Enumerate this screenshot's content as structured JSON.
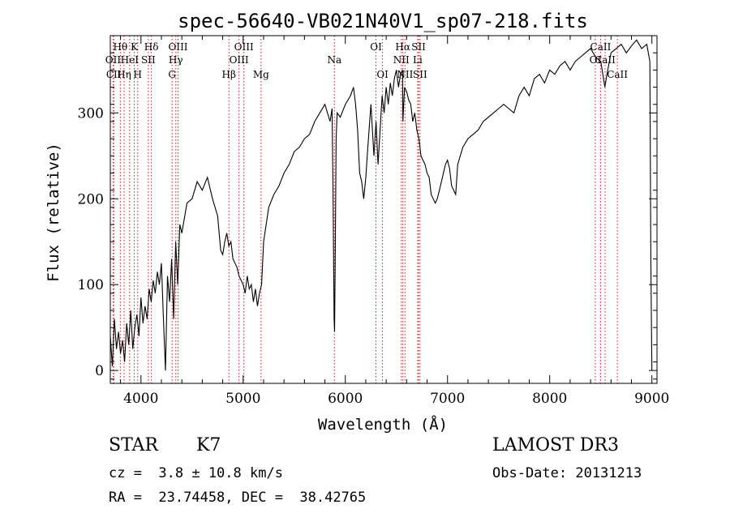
{
  "chart_data": {
    "type": "line",
    "title": "spec-56640-VB021N40V1_sp07-218.fits",
    "xlabel": "Wavelength (Å)",
    "ylabel": "Flux (relative)",
    "xlim": [
      3700,
      9050
    ],
    "ylim": [
      -15,
      390
    ],
    "xticks": [
      4000,
      5000,
      6000,
      7000,
      8000,
      9000
    ],
    "yticks": [
      0,
      100,
      200,
      300
    ],
    "grid": false,
    "line_color": "#000000",
    "marker_color": "#cc2222",
    "series": [
      {
        "x": [
          3700,
          3720,
          3740,
          3760,
          3780,
          3800,
          3820,
          3840,
          3860,
          3880,
          3900,
          3920,
          3940,
          3960,
          3980,
          4000,
          4020,
          4040,
          4060,
          4080,
          4100,
          4120,
          4140,
          4160,
          4180,
          4200,
          4220,
          4240,
          4260,
          4280,
          4300,
          4320,
          4340,
          4360,
          4380,
          4400,
          4450,
          4500,
          4550,
          4600,
          4650,
          4700,
          4750,
          4780,
          4800,
          4820,
          4840,
          4860,
          4880,
          4900,
          4920,
          4940,
          4960,
          4980,
          5000,
          5020,
          5040,
          5060,
          5080,
          5100,
          5120,
          5140,
          5160,
          5180,
          5200,
          5250,
          5300,
          5350,
          5400,
          5450,
          5500,
          5550,
          5600,
          5650,
          5700,
          5750,
          5800,
          5850,
          5870,
          5880,
          5890,
          5895,
          5900,
          5910,
          5920,
          5950,
          6000,
          6050,
          6080,
          6100,
          6120,
          6140,
          6160,
          6180,
          6200,
          6220,
          6250,
          6280,
          6300,
          6320,
          6340,
          6360,
          6380,
          6400,
          6420,
          6440,
          6460,
          6480,
          6500,
          6520,
          6540,
          6560,
          6563,
          6580,
          6600,
          6620,
          6640,
          6660,
          6680,
          6700,
          6720,
          6740,
          6760,
          6780,
          6800,
          6820,
          6840,
          6860,
          6880,
          6900,
          6920,
          6940,
          6960,
          6980,
          7000,
          7020,
          7040,
          7060,
          7080,
          7100,
          7150,
          7200,
          7250,
          7300,
          7350,
          7400,
          7450,
          7500,
          7550,
          7600,
          7650,
          7700,
          7750,
          7800,
          7850,
          7900,
          7950,
          8000,
          8050,
          8100,
          8150,
          8200,
          8250,
          8300,
          8350,
          8400,
          8450,
          8500,
          8540,
          8560,
          8600,
          8650,
          8700,
          8750,
          8800,
          8850,
          8900,
          8950,
          8980,
          8990,
          9000
        ],
        "y": [
          40,
          5,
          60,
          25,
          45,
          20,
          35,
          10,
          55,
          30,
          70,
          25,
          50,
          65,
          40,
          85,
          55,
          75,
          60,
          95,
          80,
          105,
          90,
          115,
          100,
          125,
          60,
          0,
          110,
          80,
          130,
          60,
          150,
          100,
          170,
          160,
          195,
          200,
          220,
          210,
          225,
          200,
          180,
          140,
          135,
          150,
          160,
          145,
          150,
          130,
          125,
          120,
          110,
          105,
          100,
          90,
          110,
          95,
          100,
          80,
          95,
          75,
          90,
          100,
          150,
          190,
          205,
          215,
          230,
          240,
          255,
          260,
          270,
          275,
          290,
          300,
          310,
          290,
          305,
          210,
          60,
          45,
          120,
          270,
          300,
          295,
          310,
          320,
          330,
          310,
          280,
          230,
          220,
          200,
          225,
          260,
          310,
          250,
          290,
          240,
          280,
          320,
          300,
          330,
          310,
          335,
          320,
          340,
          350,
          330,
          345,
          350,
          290,
          330,
          325,
          315,
          310,
          290,
          300,
          280,
          270,
          250,
          245,
          240,
          230,
          225,
          205,
          200,
          195,
          200,
          210,
          220,
          230,
          240,
          245,
          235,
          215,
          210,
          205,
          240,
          260,
          270,
          275,
          280,
          290,
          295,
          300,
          305,
          310,
          305,
          300,
          320,
          330,
          320,
          340,
          345,
          335,
          350,
          345,
          355,
          360,
          350,
          360,
          365,
          370,
          375,
          365,
          360,
          330,
          345,
          370,
          375,
          380,
          370,
          378,
          385,
          375,
          380,
          360,
          130,
          0
        ]
      }
    ],
    "lines": [
      {
        "label": "Hθ",
        "x": 3798,
        "row": 1
      },
      {
        "label": "OII",
        "x": 3727,
        "row": 2
      },
      {
        "label": "CII",
        "x": 3733,
        "row": 3
      },
      {
        "label": "K",
        "x": 3934,
        "row": 1
      },
      {
        "label": "HeI",
        "x": 3889,
        "row": 2
      },
      {
        "label": "Hη",
        "x": 3835,
        "row": 3
      },
      {
        "label": "H",
        "x": 3968,
        "row": 3
      },
      {
        "label": "SII",
        "x": 4072,
        "row": 2
      },
      {
        "label": "Hδ",
        "x": 4102,
        "row": 1
      },
      {
        "label": "OIII",
        "x": 4363,
        "row": 1
      },
      {
        "label": "Hγ",
        "x": 4341,
        "row": 2
      },
      {
        "label": "G",
        "x": 4305,
        "row": 3
      },
      {
        "label": "Hβ",
        "x": 4861,
        "row": 3
      },
      {
        "label": "OIII",
        "x": 4959,
        "row": 2
      },
      {
        "label": "OIII",
        "x": 5007,
        "row": 1
      },
      {
        "label": "Mg",
        "x": 5175,
        "row": 3
      },
      {
        "label": "Na",
        "x": 5893,
        "row": 2
      },
      {
        "label": "OI",
        "x": 6300,
        "row": 1
      },
      {
        "label": "OI",
        "x": 6364,
        "row": 3
      },
      {
        "label": "Hα",
        "x": 6563,
        "row": 1
      },
      {
        "label": "NII",
        "x": 6548,
        "row": 2
      },
      {
        "label": "NII",
        "x": 6584,
        "row": 3
      },
      {
        "label": "SII",
        "x": 6717,
        "row": 1
      },
      {
        "label": "Li",
        "x": 6708,
        "row": 2
      },
      {
        "label": "SII",
        "x": 6731,
        "row": 3
      },
      {
        "label": "CaII",
        "x": 8498,
        "row": 1
      },
      {
        "label": "OI",
        "x": 8446,
        "row": 2
      },
      {
        "label": "CaII",
        "x": 8542,
        "row": 2
      },
      {
        "label": "CaII",
        "x": 8662,
        "row": 3
      }
    ]
  },
  "info": {
    "object_class": "STAR",
    "subclass": "K7",
    "survey": "LAMOST DR3",
    "redshift": "cz =  3.8 ± 10.8 km/s",
    "obs_date": "Obs-Date: 20131213",
    "coords": "RA =  23.74458, DEC =  38.42765"
  }
}
